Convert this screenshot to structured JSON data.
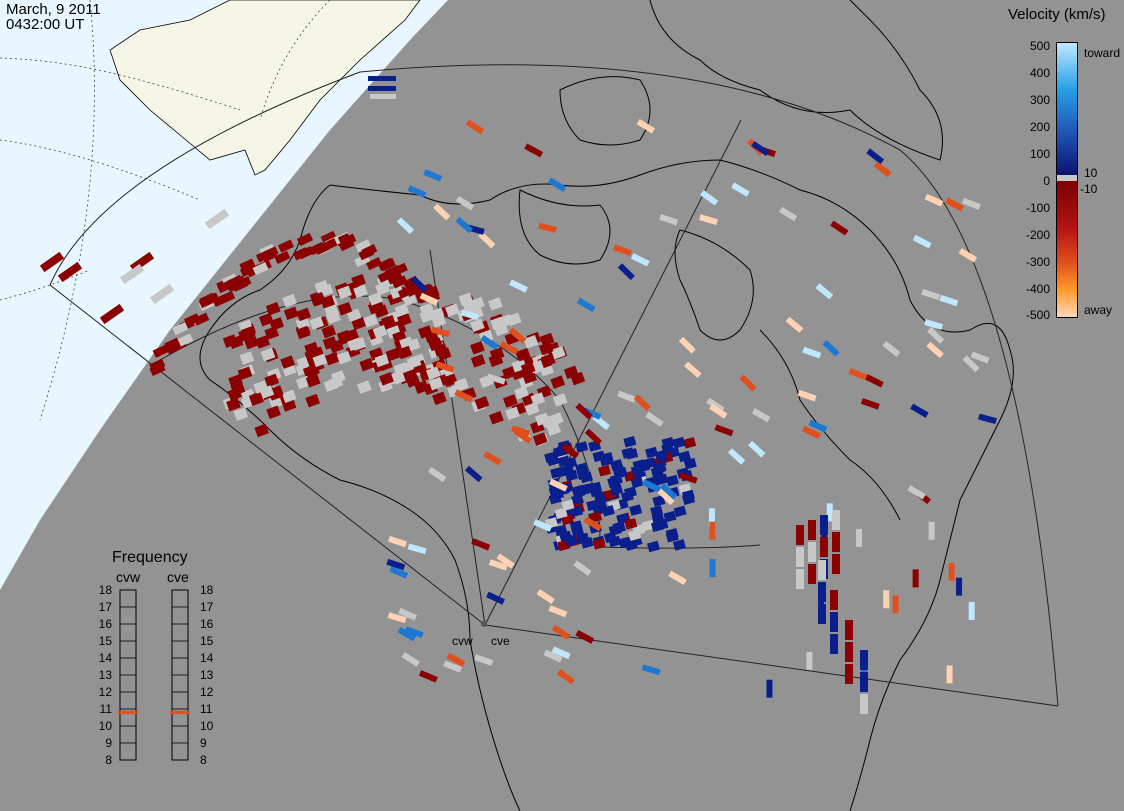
{
  "header": {
    "date": "March, 9 2011",
    "time": "0432:00 UT"
  },
  "velocity_legend": {
    "title": "Velocity (km/s)",
    "toward_label": "toward",
    "away_label": "away",
    "ticks": [
      "500",
      "400",
      "300",
      "200",
      "100",
      "10",
      "0",
      "-10",
      "-100",
      "-200",
      "-300",
      "-400",
      "-500"
    ],
    "colors": {
      "toward_bright": "#bfe8ff",
      "toward_mid": "#1e78d2",
      "toward_dark": "#0a1e8c",
      "away_dark": "#8b0000",
      "away_mid": "#e0501e",
      "away_bright": "#ffd2b4",
      "ground_scatter": "#c8c8c8"
    }
  },
  "radars": {
    "west": "cvw",
    "east": "cve"
  },
  "frequency_legend": {
    "title": "Frequency",
    "ticks": [
      "18",
      "17",
      "16",
      "15",
      "14",
      "13",
      "12",
      "11",
      "10",
      "9",
      "8"
    ],
    "cvw_value_mhz": 10.8,
    "cve_value_mhz": 10.8,
    "marker_color": "#e0501e"
  },
  "map_colors": {
    "ocean": "#939393",
    "land_outline": "#000000",
    "daylight": "#e8f6ff",
    "sunlit_land": "#f6f6e6"
  }
}
